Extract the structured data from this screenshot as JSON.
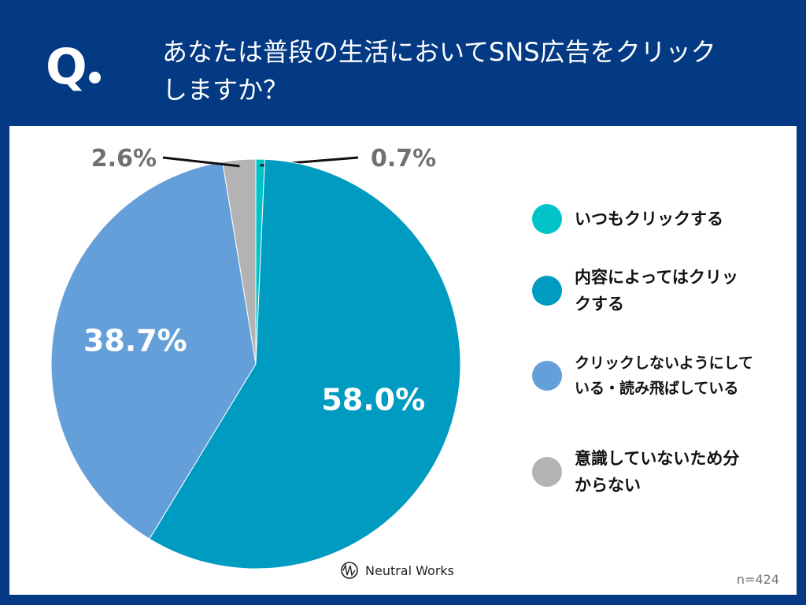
{
  "header": {
    "q_mark": "Q",
    "title": "あなたは普段の生活においてSNS広告をクリックしますか？"
  },
  "chart_data": {
    "type": "pie",
    "title": "あなたは普段の生活においてSNS広告をクリックしますか？",
    "start": "top",
    "direction": "clockwise",
    "slices": [
      {
        "label": "いつもクリックする",
        "value": 0.7,
        "display": "0.7%",
        "color": "#00c3c9"
      },
      {
        "label": "内容によってはクリックする",
        "value": 58.0,
        "display": "58.0%",
        "color": "#009bc0"
      },
      {
        "label": "クリックしないようにしている・読み飛ばしている",
        "value": 38.7,
        "display": "38.7%",
        "color": "#649fd9"
      },
      {
        "label": "意識していないため分からない",
        "value": 2.6,
        "display": "2.6%",
        "color": "#b3b3b3"
      }
    ],
    "legend": "right"
  },
  "footer": {
    "sample_size": "n=424",
    "brand": "Neutral Works"
  }
}
